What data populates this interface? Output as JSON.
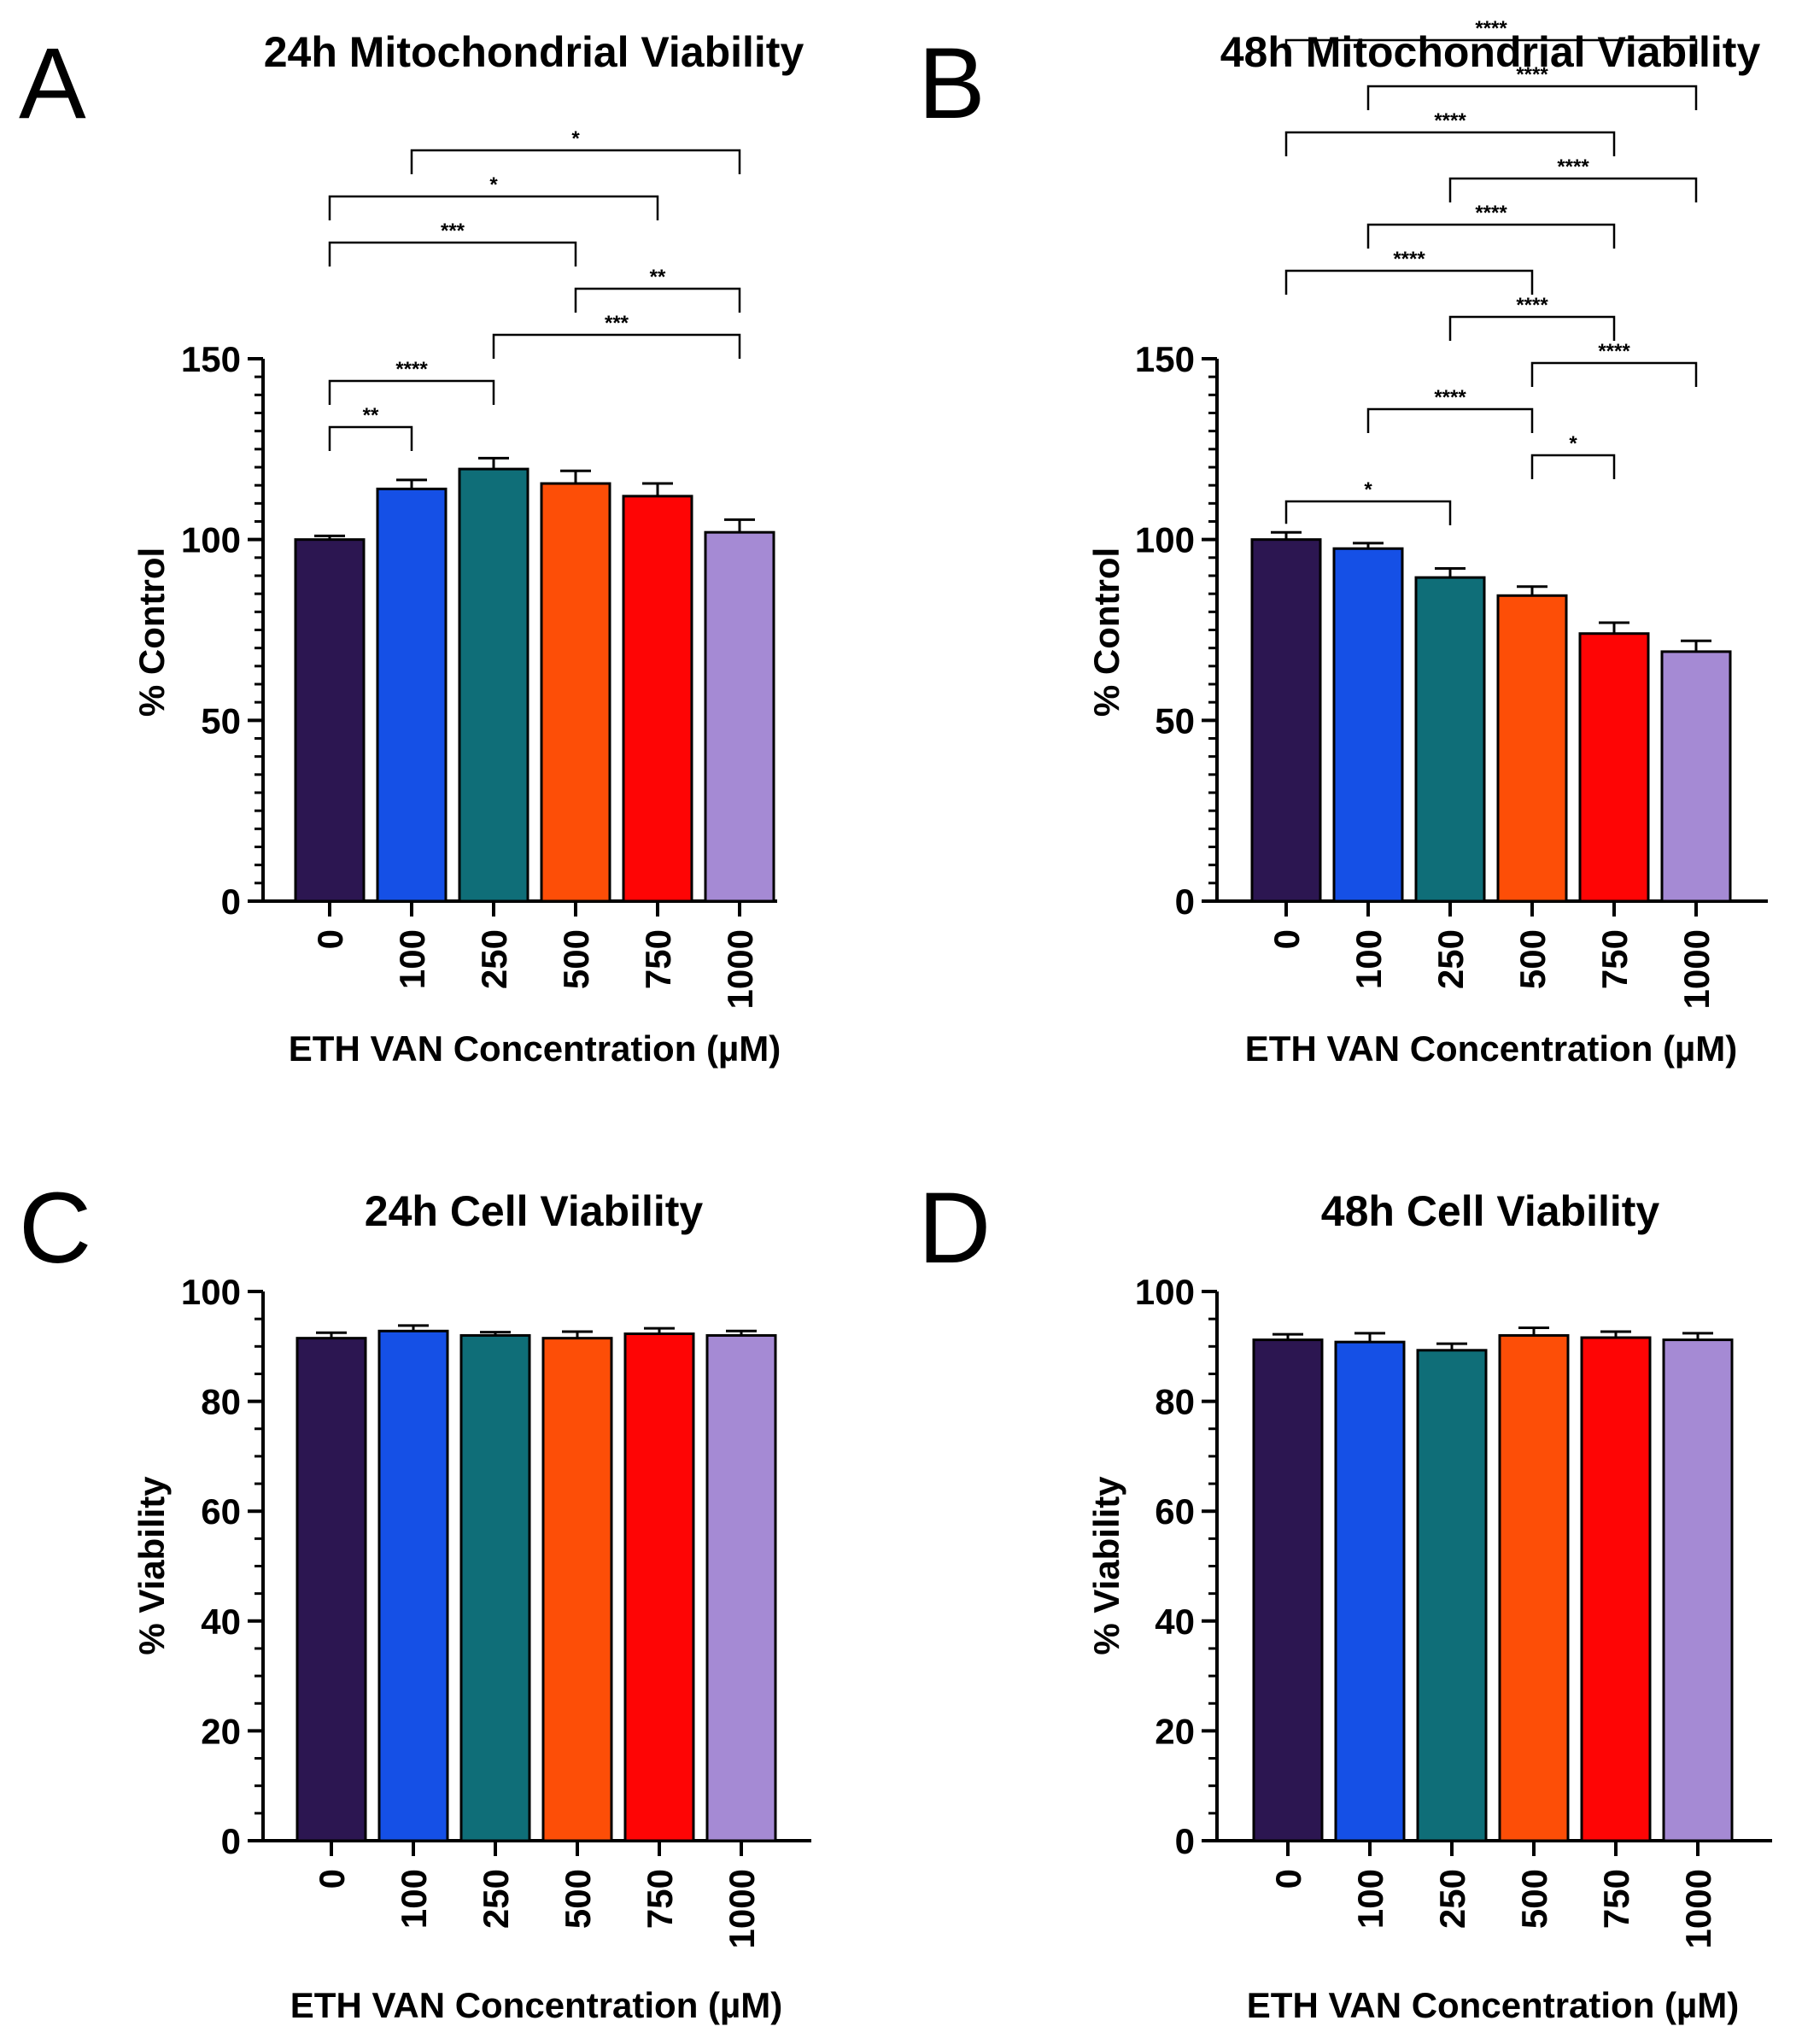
{
  "chart_data": [
    {
      "panel": "A",
      "type": "bar",
      "title": "24h Mitochondrial Viability",
      "xlabel": "ETH VAN Concentration (µM)",
      "ylabel": "% Control",
      "ylim": [
        0,
        150
      ],
      "yticks": [
        0,
        50,
        100,
        150
      ],
      "categories": [
        "0",
        "100",
        "250",
        "500",
        "750",
        "1000"
      ],
      "values": [
        100,
        114,
        119.5,
        115.5,
        112,
        102
      ],
      "errors": [
        1,
        2.5,
        3,
        3.5,
        3.5,
        3.5
      ],
      "colors": [
        "#2c1651",
        "#1550e6",
        "#0f6e78",
        "#fd4e07",
        "#fe0505",
        "#a58ad4"
      ],
      "significance": [
        {
          "from": 0,
          "to": 1,
          "label": "**"
        },
        {
          "from": 0,
          "to": 2,
          "label": "****"
        },
        {
          "from": 2,
          "to": 5,
          "label": "***"
        },
        {
          "from": 3,
          "to": 5,
          "label": "**"
        },
        {
          "from": 0,
          "to": 3,
          "label": "***"
        },
        {
          "from": 0,
          "to": 4,
          "label": "*"
        },
        {
          "from": 1,
          "to": 5,
          "label": "*"
        }
      ]
    },
    {
      "panel": "B",
      "type": "bar",
      "title": "48h Mitochondrial Viability",
      "xlabel": "ETH VAN Concentration (µM)",
      "ylabel": "% Control",
      "ylim": [
        0,
        150
      ],
      "yticks": [
        0,
        50,
        100,
        150
      ],
      "categories": [
        "0",
        "100",
        "250",
        "500",
        "750",
        "1000"
      ],
      "values": [
        100,
        97.5,
        89.5,
        84.5,
        74,
        69
      ],
      "errors": [
        2,
        1.5,
        2.5,
        2.5,
        3,
        3
      ],
      "colors": [
        "#2c1651",
        "#1550e6",
        "#0f6e78",
        "#fd4e07",
        "#fe0505",
        "#a58ad4"
      ],
      "significance": [
        {
          "from": 0,
          "to": 2,
          "label": "*"
        },
        {
          "from": 3,
          "to": 4,
          "label": "*"
        },
        {
          "from": 1,
          "to": 3,
          "label": "****"
        },
        {
          "from": 3,
          "to": 5,
          "label": "****"
        },
        {
          "from": 2,
          "to": 4,
          "label": "****"
        },
        {
          "from": 0,
          "to": 3,
          "label": "****"
        },
        {
          "from": 1,
          "to": 4,
          "label": "****"
        },
        {
          "from": 2,
          "to": 5,
          "label": "****"
        },
        {
          "from": 0,
          "to": 4,
          "label": "****"
        },
        {
          "from": 1,
          "to": 5,
          "label": "****"
        },
        {
          "from": 0,
          "to": 5,
          "label": "****"
        }
      ]
    },
    {
      "panel": "C",
      "type": "bar",
      "title": "24h Cell Viability",
      "xlabel": "ETH VAN Concentration (µM)",
      "ylabel": "% Viability",
      "ylim": [
        0,
        100
      ],
      "yticks": [
        0,
        20,
        40,
        60,
        80,
        100
      ],
      "categories": [
        "0",
        "100",
        "250",
        "500",
        "750",
        "1000"
      ],
      "values": [
        91.5,
        92.8,
        92,
        91.5,
        92.3,
        92
      ],
      "errors": [
        1,
        1,
        0.6,
        1.2,
        1,
        0.8
      ],
      "colors": [
        "#2c1651",
        "#1550e6",
        "#0f6e78",
        "#fd4e07",
        "#fe0505",
        "#a58ad4"
      ],
      "significance": []
    },
    {
      "panel": "D",
      "type": "bar",
      "title": "48h Cell Viability",
      "xlabel": "ETH VAN Concentration (µM)",
      "ylabel": "% Viability",
      "ylim": [
        0,
        100
      ],
      "yticks": [
        0,
        20,
        40,
        60,
        80,
        100
      ],
      "categories": [
        "0",
        "100",
        "250",
        "500",
        "750",
        "1000"
      ],
      "values": [
        91.2,
        90.8,
        89.3,
        92,
        91.6,
        91.2
      ],
      "errors": [
        1,
        1.6,
        1.2,
        1.4,
        1.1,
        1.2
      ],
      "colors": [
        "#2c1651",
        "#1550e6",
        "#0f6e78",
        "#fd4e07",
        "#fe0505",
        "#a58ad4"
      ],
      "significance": []
    }
  ]
}
